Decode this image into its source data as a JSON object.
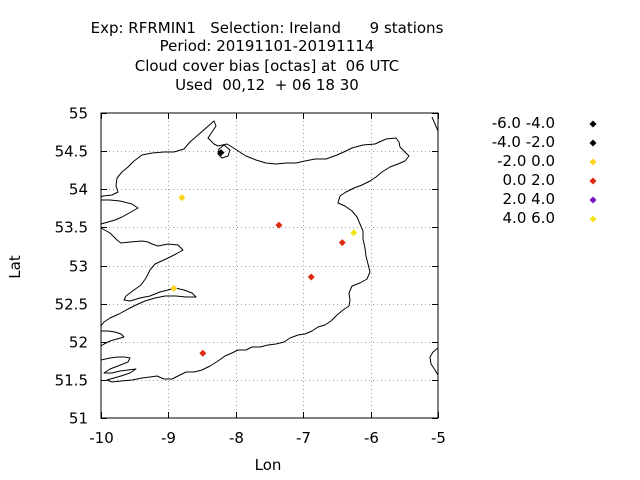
{
  "header": {
    "lines": [
      "Exp: RFRMIN1   Selection: Ireland      9 stations",
      "Period: 20191101-20191114",
      "Cloud cover bias [octas] at  06 UTC",
      "Used  00,12  + 06 18 30"
    ]
  },
  "chart_data": {
    "type": "scatter",
    "xlabel": "Lon",
    "ylabel": "Lat",
    "xlim": [
      -10,
      -5
    ],
    "ylim": [
      51,
      55
    ],
    "x_ticks": [
      -10,
      -9,
      -8,
      -7,
      -6,
      -5
    ],
    "y_ticks": [
      51,
      51.5,
      52,
      52.5,
      53,
      53.5,
      54,
      54.5,
      55
    ],
    "grid": true,
    "legend_position": "right",
    "legend": [
      {
        "label": "-6.0 -4.0",
        "color": "#000000"
      },
      {
        "label": "-4.0 -2.0",
        "color": "#000000"
      },
      {
        "label": "-2.0 0.0",
        "color": "#ffd21e"
      },
      {
        "label": "0.0 2.0",
        "color": "#dc2a10"
      },
      {
        "label": "2.0 4.0",
        "color": "#7a12c8"
      },
      {
        "label": "4.0 6.0",
        "color": "#f2e51a"
      }
    ],
    "points": [
      {
        "lon": -8.22,
        "lat": 54.48,
        "bin": 1
      },
      {
        "lon": -8.8,
        "lat": 53.89,
        "bin": 2
      },
      {
        "lon": -7.36,
        "lat": 53.53,
        "bin": 3
      },
      {
        "lon": -6.42,
        "lat": 53.3,
        "bin": 3
      },
      {
        "lon": -6.25,
        "lat": 53.43,
        "bin": 5
      },
      {
        "lon": -6.88,
        "lat": 52.85,
        "bin": 3
      },
      {
        "lon": -8.92,
        "lat": 52.7,
        "bin": 2
      },
      {
        "lon": -8.49,
        "lat": 51.85,
        "bin": 3
      }
    ]
  }
}
